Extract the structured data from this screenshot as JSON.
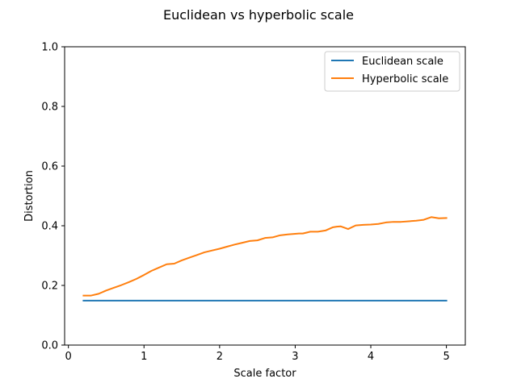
{
  "chart_data": {
    "type": "line",
    "title": "Euclidean vs hyperbolic scale",
    "xlabel": "Scale factor",
    "ylabel": "Distortion",
    "xlim": [
      -0.05,
      5.25
    ],
    "ylim": [
      0.0,
      1.0
    ],
    "x_ticks": [
      0,
      1,
      2,
      3,
      4,
      5
    ],
    "y_ticks": [
      0.0,
      0.2,
      0.4,
      0.6,
      0.8,
      1.0
    ],
    "x_tick_labels": [
      "0",
      "1",
      "2",
      "3",
      "4",
      "5"
    ],
    "y_tick_labels": [
      "0.0",
      "0.2",
      "0.4",
      "0.6",
      "0.8",
      "1.0"
    ],
    "grid": false,
    "legend_position": "top-right",
    "series": [
      {
        "name": "Euclidean scale",
        "color": "#1f77b4",
        "x": [
          0.2,
          5.0
        ],
        "y": [
          0.149,
          0.149
        ]
      },
      {
        "name": "Hyperbolic scale",
        "color": "#ff7f0e",
        "x": [
          0.2,
          0.3,
          0.4,
          0.5,
          0.6,
          0.7,
          0.8,
          0.9,
          1.0,
          1.1,
          1.2,
          1.3,
          1.35,
          1.4,
          1.5,
          1.6,
          1.7,
          1.8,
          1.9,
          2.0,
          2.1,
          2.2,
          2.3,
          2.4,
          2.5,
          2.6,
          2.7,
          2.8,
          2.9,
          3.0,
          3.05,
          3.1,
          3.2,
          3.3,
          3.4,
          3.5,
          3.55,
          3.6,
          3.7,
          3.8,
          3.9,
          4.0,
          4.1,
          4.2,
          4.3,
          4.4,
          4.5,
          4.6,
          4.7,
          4.8,
          4.9,
          5.0
        ],
        "y": [
          0.166,
          0.166,
          0.172,
          0.183,
          0.192,
          0.201,
          0.211,
          0.222,
          0.235,
          0.249,
          0.26,
          0.271,
          0.272,
          0.273,
          0.284,
          0.293,
          0.302,
          0.311,
          0.317,
          0.323,
          0.33,
          0.337,
          0.343,
          0.349,
          0.351,
          0.359,
          0.361,
          0.368,
          0.371,
          0.373,
          0.374,
          0.374,
          0.38,
          0.38,
          0.384,
          0.395,
          0.397,
          0.398,
          0.389,
          0.401,
          0.403,
          0.404,
          0.406,
          0.411,
          0.413,
          0.413,
          0.415,
          0.417,
          0.42,
          0.429,
          0.425,
          0.426
        ]
      }
    ]
  }
}
